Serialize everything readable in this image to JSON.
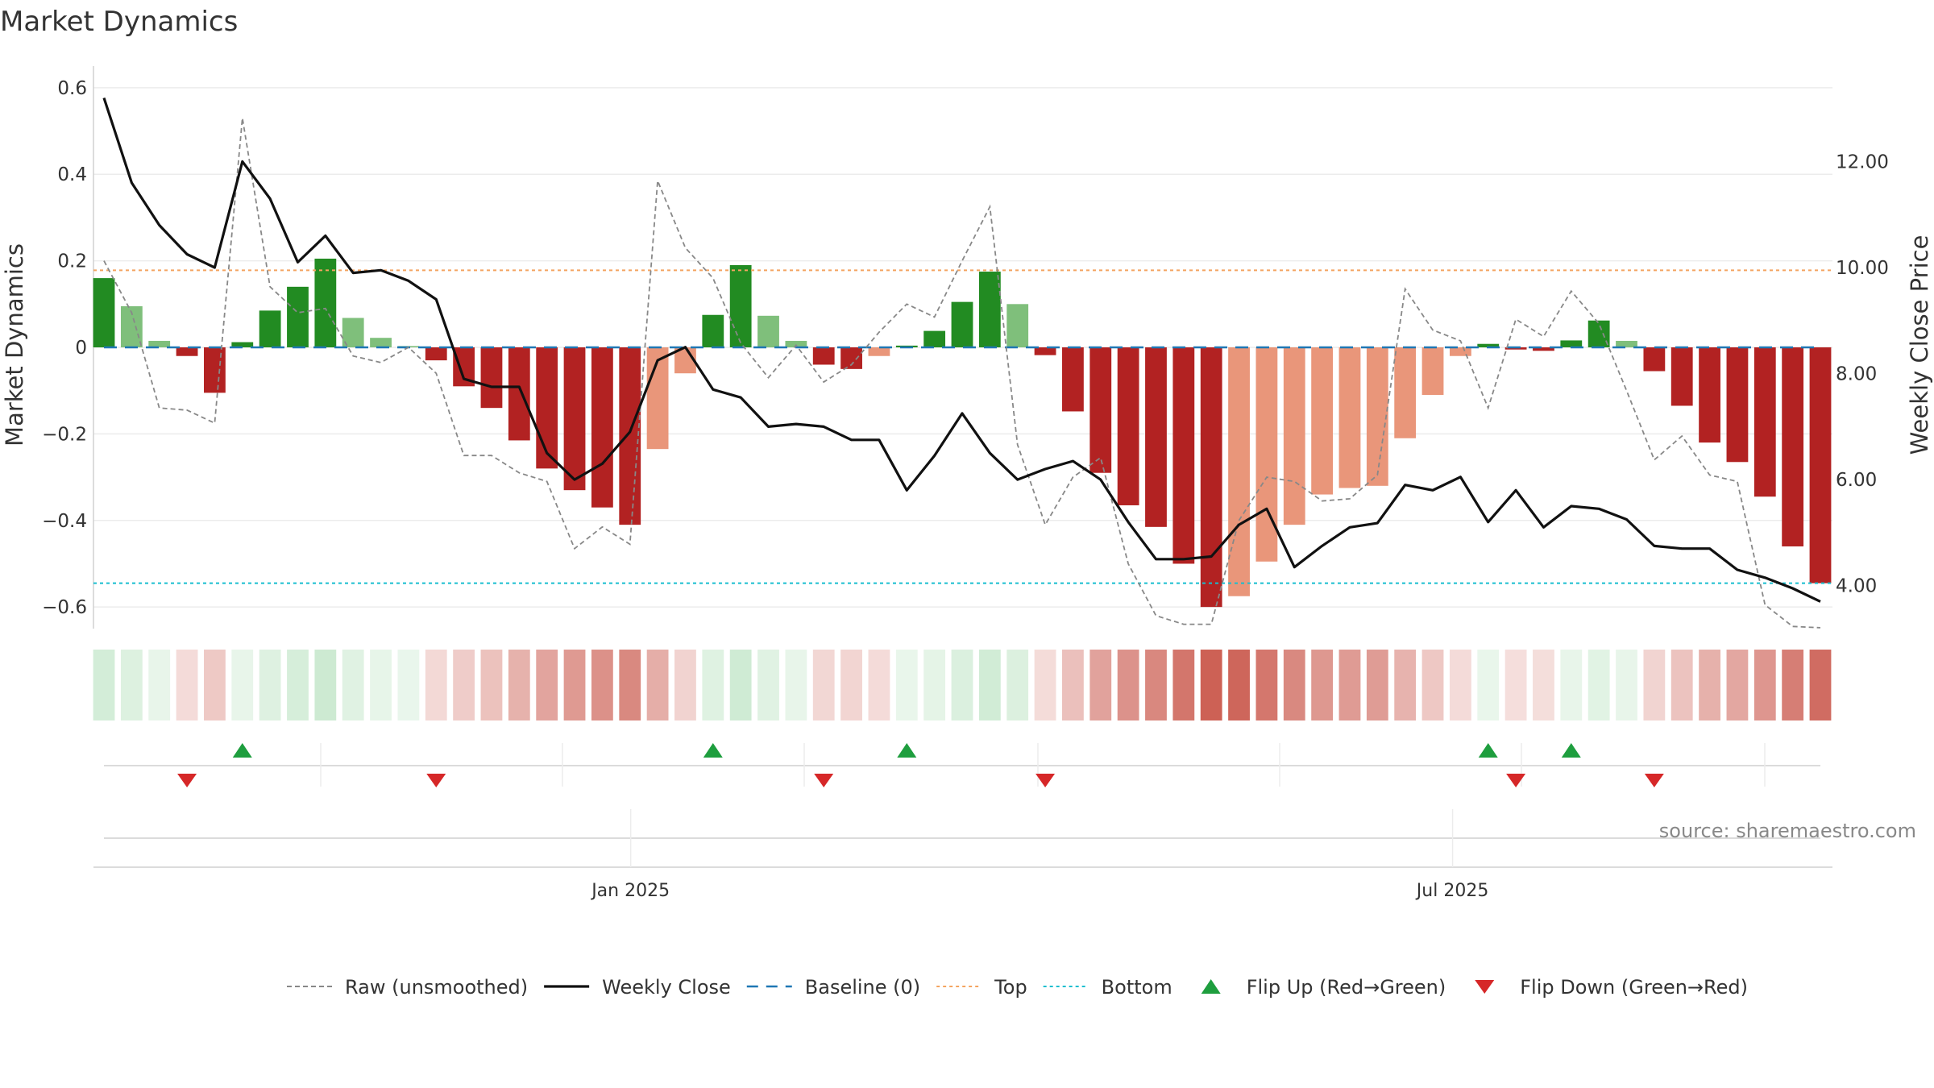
{
  "chart_data": {
    "type": "bar",
    "title": "Market Dynamics",
    "ylabel_left": "Market Dynamics",
    "ylabel_right": "Weekly Close Price",
    "ylim_left": [
      -0.65,
      0.65
    ],
    "ylim_right": [
      3.19,
      13.8
    ],
    "yticks_left": [
      {
        "v": 0.6,
        "label": "0.6"
      },
      {
        "v": 0.4,
        "label": "0.4"
      },
      {
        "v": 0.2,
        "label": "0.2"
      },
      {
        "v": 0,
        "label": "0"
      },
      {
        "v": -0.2,
        "label": "−0.2"
      },
      {
        "v": -0.4,
        "label": "−0.4"
      },
      {
        "v": -0.6,
        "label": "−0.6"
      }
    ],
    "yticks_right": [
      {
        "v": 12,
        "label": "12.00"
      },
      {
        "v": 10,
        "label": "10.00"
      },
      {
        "v": 8,
        "label": "8.00"
      },
      {
        "v": 6,
        "label": "6.00"
      },
      {
        "v": 4,
        "label": "4.00"
      }
    ],
    "date_start": "2024-09-07",
    "date_end": "2025-09-20",
    "x_ticks": [
      {
        "date": "2025-01-01",
        "label": "Jan 2025"
      },
      {
        "date": "2025-07-01",
        "label": "Jul 2025"
      }
    ],
    "top": 0.178,
    "bottom": -0.545,
    "baseline": 0,
    "dynamics": [
      0.16,
      0.095,
      0.015,
      -0.02,
      -0.105,
      0.012,
      0.085,
      0.14,
      0.205,
      0.068,
      0.022,
      0.003,
      -0.03,
      -0.09,
      -0.14,
      -0.215,
      -0.28,
      -0.33,
      -0.37,
      -0.41,
      -0.235,
      -0.06,
      0.075,
      0.19,
      0.073,
      0.015,
      -0.04,
      -0.05,
      -0.02,
      0.004,
      0.038,
      0.105,
      0.175,
      0.1,
      -0.018,
      -0.148,
      -0.29,
      -0.365,
      -0.415,
      -0.5,
      -0.6,
      -0.575,
      -0.495,
      -0.41,
      -0.34,
      -0.325,
      -0.32,
      -0.21,
      -0.11,
      -0.02,
      0.008,
      -0.005,
      -0.008,
      0.016,
      0.062,
      0.015,
      -0.055,
      -0.135,
      -0.22,
      -0.265,
      -0.345,
      -0.46,
      -0.545
    ],
    "raw": [
      0.2,
      0.08,
      -0.14,
      -0.145,
      -0.175,
      0.53,
      0.14,
      0.08,
      0.09,
      -0.02,
      -0.035,
      0,
      -0.06,
      -0.25,
      -0.25,
      -0.29,
      -0.31,
      -0.465,
      -0.415,
      -0.455,
      0.385,
      0.23,
      0.16,
      0.01,
      -0.07,
      0.005,
      -0.08,
      -0.04,
      0.035,
      0.1,
      0.07,
      0.2,
      0.325,
      -0.225,
      -0.41,
      -0.3,
      -0.255,
      -0.5,
      -0.62,
      -0.64,
      -0.64,
      -0.4,
      -0.3,
      -0.31,
      -0.355,
      -0.35,
      -0.295,
      0.135,
      0.04,
      0.015,
      -0.14,
      0.065,
      0.025,
      0.13,
      0.055,
      -0.1,
      -0.26,
      -0.205,
      -0.295,
      -0.31,
      -0.595,
      -0.645,
      -0.648
    ],
    "close": [
      13.2,
      11.6,
      10.8,
      10.25,
      10.0,
      12.0,
      11.3,
      10.1,
      10.6,
      9.9,
      9.95,
      9.75,
      9.4,
      7.9,
      7.75,
      7.75,
      6.5,
      6.0,
      6.3,
      6.9,
      8.25,
      8.5,
      7.7,
      7.55,
      7.0,
      7.05,
      7.0,
      6.75,
      6.75,
      5.8,
      6.45,
      7.25,
      6.5,
      6.0,
      6.2,
      6.35,
      6.0,
      5.2,
      4.5,
      4.5,
      4.55,
      5.15,
      5.45,
      4.35,
      4.75,
      5.1,
      5.18,
      5.9,
      5.8,
      6.05,
      5.2,
      5.8,
      5.1,
      5.5,
      5.45,
      5.25,
      4.75,
      4.7,
      4.7,
      4.3,
      4.15,
      3.95,
      3.7
    ],
    "flip_up_weeks": [
      5,
      22,
      29,
      50,
      53
    ],
    "flip_down_weeks": [
      3,
      12,
      26,
      34,
      51,
      56
    ],
    "legend": [
      {
        "label": "Raw (unsmoothed)",
        "kind": "raw"
      },
      {
        "label": "Weekly Close",
        "kind": "close"
      },
      {
        "label": "Baseline (0)",
        "kind": "baseline"
      },
      {
        "label": "Top",
        "kind": "top"
      },
      {
        "label": "Bottom",
        "kind": "bottom"
      },
      {
        "label": "Flip Up (Red→Green)",
        "kind": "flipup"
      },
      {
        "label": "Flip Down (Green→Red)",
        "kind": "flipdown"
      }
    ],
    "colors": {
      "pos_strong": "#228b22",
      "pos_weak": "#7fbf7b",
      "neg_strong": "#b22222",
      "neg_weak": "#e9967a",
      "raw": "#888888",
      "close": "#111111",
      "baseline": "#1f77b4",
      "top": "#f4a460",
      "bottom": "#17becf",
      "flip_up": "#1e9e3e",
      "flip_down": "#d62728"
    }
  },
  "source_text": "source: sharemaestro.com"
}
